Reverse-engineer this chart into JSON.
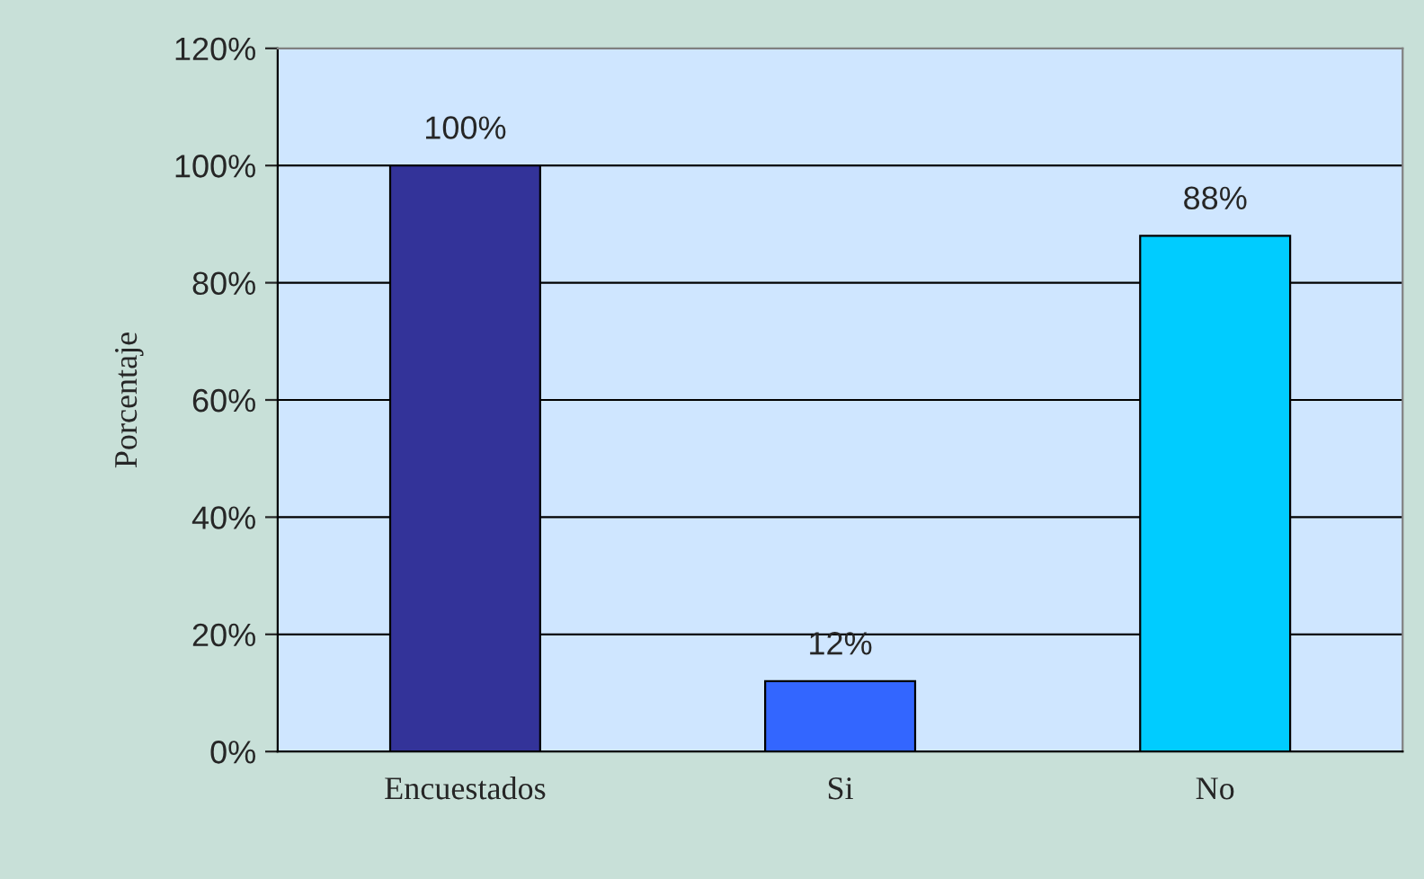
{
  "chart_data": {
    "type": "bar",
    "ylabel": "Porcentaje",
    "categories": [
      "Encuestados",
      "Si",
      "No"
    ],
    "values": [
      100,
      12,
      88
    ],
    "colors": [
      "#333399",
      "#3366ff",
      "#00ccff"
    ],
    "value_labels": [
      "100%",
      "12%",
      "88%"
    ],
    "ylim": [
      0,
      120
    ],
    "yticks": [
      {
        "value": 0,
        "label": "0%"
      },
      {
        "value": 20,
        "label": "20%"
      },
      {
        "value": 40,
        "label": "40%"
      },
      {
        "value": 60,
        "label": "60%"
      },
      {
        "value": 80,
        "label": "80%"
      },
      {
        "value": 100,
        "label": "100%"
      },
      {
        "value": 120,
        "label": "120%"
      }
    ],
    "grid": "y",
    "legend": false
  }
}
